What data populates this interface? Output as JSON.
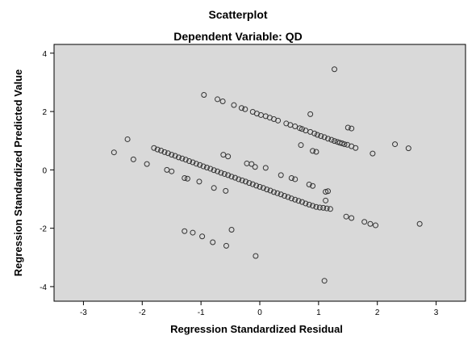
{
  "chart_data": {
    "type": "scatter",
    "title": "Scatterplot",
    "subtitle": "Dependent Variable: QD",
    "xlabel": "Regression Standardized Residual",
    "ylabel": "Regression Standardized Predicted Value",
    "xlim": [
      -3.5,
      3.5
    ],
    "ylim": [
      -4.5,
      4.3
    ],
    "xticks": [
      -3,
      -2,
      -1,
      0,
      1,
      2,
      3
    ],
    "yticks": [
      -4,
      -2,
      0,
      2,
      4
    ],
    "grid": false,
    "plot_background": "#d9d9d9",
    "marker_color": "#333333",
    "points": [
      [
        1.27,
        3.45
      ],
      [
        -0.95,
        2.57
      ],
      [
        -0.72,
        2.42
      ],
      [
        -0.63,
        2.35
      ],
      [
        -0.44,
        2.22
      ],
      [
        -0.31,
        2.12
      ],
      [
        -0.25,
        2.08
      ],
      [
        -0.12,
        1.99
      ],
      [
        -0.05,
        1.93
      ],
      [
        0.02,
        1.88
      ],
      [
        0.1,
        1.84
      ],
      [
        0.17,
        1.79
      ],
      [
        0.24,
        1.74
      ],
      [
        0.31,
        1.69
      ],
      [
        0.45,
        1.59
      ],
      [
        0.52,
        1.54
      ],
      [
        0.6,
        1.49
      ],
      [
        0.68,
        1.43
      ],
      [
        0.72,
        1.4
      ],
      [
        0.78,
        1.35
      ],
      [
        0.86,
        1.3
      ],
      [
        0.93,
        1.25
      ],
      [
        0.98,
        1.2
      ],
      [
        1.04,
        1.16
      ],
      [
        1.1,
        1.12
      ],
      [
        1.16,
        1.07
      ],
      [
        1.22,
        1.03
      ],
      [
        1.27,
        0.99
      ],
      [
        1.32,
        0.96
      ],
      [
        1.36,
        0.93
      ],
      [
        1.4,
        0.91
      ],
      [
        1.44,
        0.88
      ],
      [
        1.49,
        0.86
      ],
      [
        1.56,
        0.81
      ],
      [
        1.63,
        0.75
      ],
      [
        0.86,
        1.91
      ],
      [
        1.5,
        1.45
      ],
      [
        1.56,
        1.42
      ],
      [
        2.3,
        0.88
      ],
      [
        2.53,
        0.74
      ],
      [
        1.92,
        0.56
      ],
      [
        0.7,
        0.85
      ],
      [
        0.9,
        0.65
      ],
      [
        0.96,
        0.62
      ],
      [
        -2.48,
        0.6
      ],
      [
        -2.25,
        1.05
      ],
      [
        -2.15,
        0.36
      ],
      [
        -1.92,
        0.2
      ],
      [
        -1.8,
        0.75
      ],
      [
        -1.74,
        0.7
      ],
      [
        -1.68,
        0.66
      ],
      [
        -1.62,
        0.61
      ],
      [
        -1.56,
        0.57
      ],
      [
        -1.5,
        0.52
      ],
      [
        -1.44,
        0.48
      ],
      [
        -1.38,
        0.43
      ],
      [
        -1.32,
        0.39
      ],
      [
        -1.26,
        0.35
      ],
      [
        -1.2,
        0.3
      ],
      [
        -1.14,
        0.26
      ],
      [
        -1.08,
        0.21
      ],
      [
        -1.02,
        0.17
      ],
      [
        -0.96,
        0.12
      ],
      [
        -0.9,
        0.08
      ],
      [
        -0.84,
        0.04
      ],
      [
        -0.78,
        -0.01
      ],
      [
        -0.72,
        -0.05
      ],
      [
        -0.66,
        -0.1
      ],
      [
        -0.6,
        -0.14
      ],
      [
        -0.54,
        -0.18
      ],
      [
        -0.48,
        -0.23
      ],
      [
        -0.42,
        -0.27
      ],
      [
        -0.36,
        -0.32
      ],
      [
        -0.3,
        -0.36
      ],
      [
        -0.24,
        -0.4
      ],
      [
        -0.18,
        -0.45
      ],
      [
        -0.12,
        -0.49
      ],
      [
        -0.06,
        -0.54
      ],
      [
        0.0,
        -0.58
      ],
      [
        0.06,
        -0.62
      ],
      [
        0.12,
        -0.67
      ],
      [
        0.18,
        -0.71
      ],
      [
        0.24,
        -0.76
      ],
      [
        0.3,
        -0.8
      ],
      [
        0.36,
        -0.84
      ],
      [
        0.42,
        -0.89
      ],
      [
        0.48,
        -0.93
      ],
      [
        0.54,
        -0.98
      ],
      [
        0.6,
        -1.02
      ],
      [
        0.66,
        -1.06
      ],
      [
        0.72,
        -1.1
      ],
      [
        0.78,
        -1.15
      ],
      [
        0.84,
        -1.19
      ],
      [
        0.9,
        -1.23
      ],
      [
        0.96,
        -1.27
      ],
      [
        1.02,
        -1.29
      ],
      [
        1.08,
        -1.3
      ],
      [
        1.14,
        -1.32
      ],
      [
        1.2,
        -1.34
      ],
      [
        -0.62,
        0.52
      ],
      [
        -0.54,
        0.46
      ],
      [
        -1.58,
        0.0
      ],
      [
        -1.5,
        -0.05
      ],
      [
        -1.28,
        -0.28
      ],
      [
        -1.23,
        -0.3
      ],
      [
        -1.03,
        -0.4
      ],
      [
        -0.78,
        -0.62
      ],
      [
        -0.58,
        -0.72
      ],
      [
        -0.22,
        0.22
      ],
      [
        -0.14,
        0.2
      ],
      [
        -0.08,
        0.1
      ],
      [
        0.1,
        0.07
      ],
      [
        0.36,
        -0.18
      ],
      [
        0.54,
        -0.28
      ],
      [
        0.6,
        -0.32
      ],
      [
        0.84,
        -0.5
      ],
      [
        0.9,
        -0.55
      ],
      [
        1.12,
        -0.75
      ],
      [
        1.16,
        -0.73
      ],
      [
        1.12,
        -1.05
      ],
      [
        1.47,
        -1.6
      ],
      [
        1.56,
        -1.65
      ],
      [
        1.78,
        -1.78
      ],
      [
        1.88,
        -1.85
      ],
      [
        1.97,
        -1.9
      ],
      [
        2.72,
        -1.85
      ],
      [
        -1.28,
        -2.1
      ],
      [
        -1.14,
        -2.15
      ],
      [
        -0.98,
        -2.28
      ],
      [
        -0.8,
        -2.48
      ],
      [
        -0.57,
        -2.6
      ],
      [
        -0.48,
        -2.05
      ],
      [
        -0.07,
        -2.95
      ],
      [
        1.1,
        -3.8
      ]
    ]
  }
}
